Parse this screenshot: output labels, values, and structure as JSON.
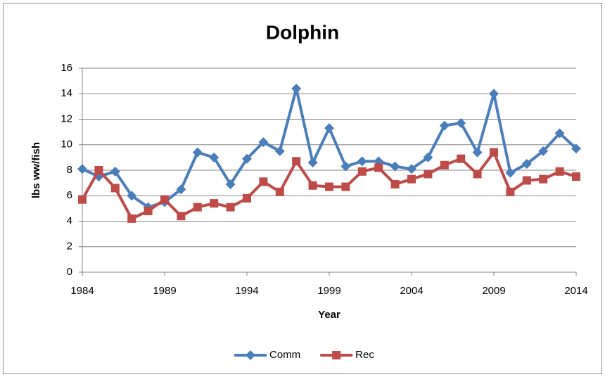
{
  "chart_data": {
    "type": "line",
    "title": "Dolphin",
    "x_label": "Year",
    "y_label": "lbs ww/fish",
    "x": [
      1984,
      1985,
      1986,
      1987,
      1988,
      1989,
      1990,
      1991,
      1992,
      1993,
      1994,
      1995,
      1996,
      1997,
      1998,
      1999,
      2000,
      2001,
      2002,
      2003,
      2004,
      2005,
      2006,
      2007,
      2008,
      2009,
      2010,
      2011,
      2012,
      2013,
      2014
    ],
    "series": [
      {
        "name": "Comm",
        "color": "#4a7ebb",
        "marker": "diamond",
        "values": [
          8.1,
          7.5,
          7.9,
          6.0,
          5.1,
          5.5,
          6.5,
          9.4,
          9.0,
          6.9,
          8.9,
          10.2,
          9.5,
          14.4,
          8.6,
          11.3,
          8.3,
          8.7,
          8.7,
          8.3,
          8.1,
          9.0,
          11.5,
          11.7,
          9.4,
          14.0,
          7.8,
          8.5,
          9.5,
          10.9,
          9.7
        ]
      },
      {
        "name": "Rec",
        "color": "#be4b48",
        "marker": "square",
        "values": [
          5.7,
          8.0,
          6.6,
          4.2,
          4.8,
          5.7,
          4.4,
          5.1,
          5.4,
          5.1,
          5.8,
          7.1,
          6.3,
          8.7,
          6.8,
          6.7,
          6.7,
          7.9,
          8.2,
          6.9,
          7.3,
          7.7,
          8.4,
          8.9,
          7.7,
          9.4,
          6.3,
          7.2,
          7.3,
          7.9,
          7.5
        ]
      }
    ],
    "xlim": [
      1984,
      2014
    ],
    "xticks": [
      1984,
      1989,
      1994,
      1999,
      2004,
      2009,
      2014
    ],
    "ylim": [
      0,
      16
    ],
    "yticks": [
      0,
      2,
      4,
      6,
      8,
      10,
      12,
      14,
      16
    ],
    "grid": true,
    "legend": "bottom"
  }
}
